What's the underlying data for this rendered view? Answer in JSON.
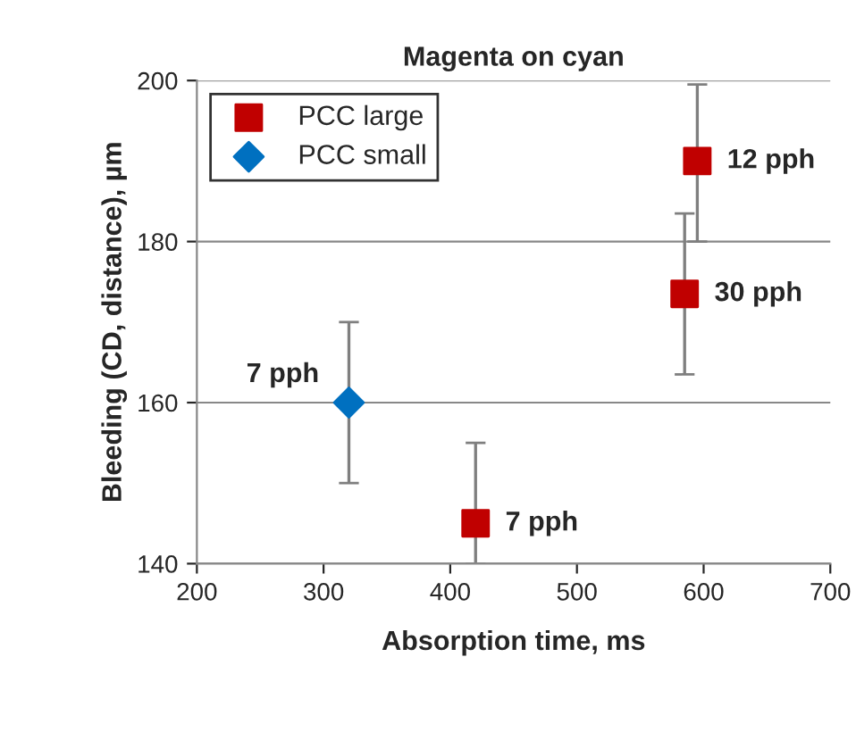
{
  "chart_data": {
    "type": "scatter",
    "title": "Magenta on cyan",
    "xlabel": "Absorption time, ms",
    "ylabel": "Bleeding (CD, distance), µm",
    "xlim": [
      200,
      700
    ],
    "xticks": [
      200,
      300,
      400,
      500,
      600,
      700
    ],
    "ylim": [
      140,
      200
    ],
    "yticks": [
      140,
      160,
      180,
      200
    ],
    "grid": "y",
    "legend": "top left",
    "series": [
      {
        "name": "PCC large",
        "color": "#c00000",
        "marker": "square",
        "x": [
          420,
          595,
          585
        ],
        "values": [
          145,
          190,
          173.5
        ],
        "errors": [
          [
            140,
            155
          ],
          [
            180,
            199.5
          ],
          [
            163.5,
            183.5
          ]
        ]
      },
      {
        "name": "PCC small",
        "color": "#0070c0",
        "marker": "diamond",
        "x": [
          320
        ],
        "values": [
          160
        ],
        "errors": [
          [
            150,
            170
          ]
        ]
      }
    ],
    "annotations": [
      {
        "text": "7 pph",
        "x": 420,
        "y": 145
      },
      {
        "text": "12 pph",
        "x": 595,
        "y": 190
      },
      {
        "text": "30 pph",
        "x": 585,
        "y": 173.5
      },
      {
        "text": "7 pph",
        "x": 320,
        "y": 160
      }
    ]
  }
}
